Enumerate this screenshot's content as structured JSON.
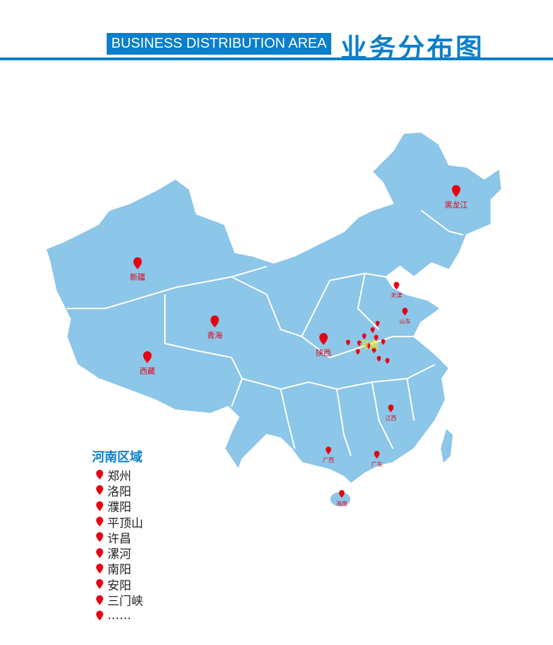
{
  "header": {
    "en_title": "BUSINESS DISTRIBUTION AREA",
    "cn_title": "业务分布图"
  },
  "colors": {
    "accent": "#0a7fcb",
    "land": "#8cc6e8",
    "pin": "#e60012",
    "henan_label": "#fff200"
  },
  "map": {
    "pins": [
      {
        "label": "黑龙江",
        "size": "large"
      },
      {
        "label": "新疆",
        "size": "large"
      },
      {
        "label": "青海",
        "size": "large"
      },
      {
        "label": "西藏",
        "size": "large"
      },
      {
        "label": "陕西",
        "size": "large"
      },
      {
        "label": "天津",
        "size": "small"
      },
      {
        "label": "山东",
        "size": "small"
      },
      {
        "label": "江西",
        "size": "small"
      },
      {
        "label": "广西",
        "size": "small"
      },
      {
        "label": "广东",
        "size": "small"
      },
      {
        "label": "海南",
        "size": "small"
      }
    ],
    "henan_label": "河南"
  },
  "legend": {
    "title": "河南区域",
    "items": [
      "郑州",
      "洛阳",
      "濮阳",
      "平顶山",
      "许昌",
      "漯河",
      "南阳",
      "安阳",
      "三门峡",
      "……"
    ]
  }
}
